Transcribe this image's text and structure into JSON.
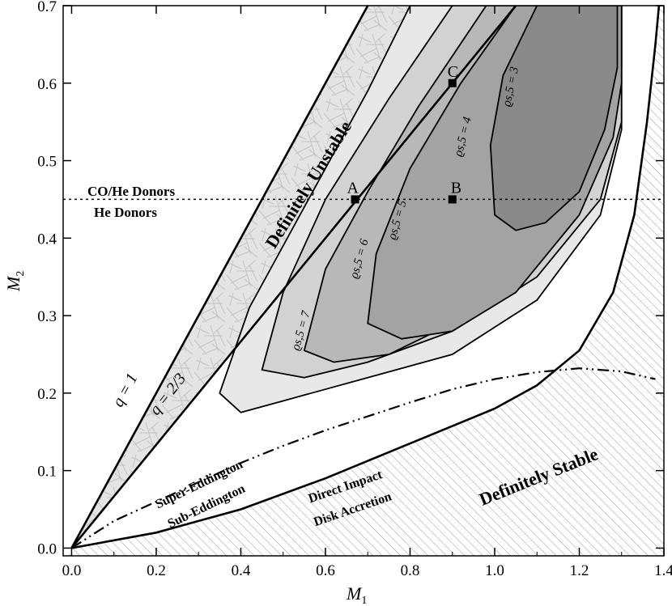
{
  "chart_data": {
    "type": "contour",
    "xlabel": {
      "main": "M",
      "sub": "1"
    },
    "ylabel": {
      "main": "M",
      "sub": "2"
    },
    "xlim": [
      -0.02,
      1.4
    ],
    "ylim": [
      -0.01,
      0.7
    ],
    "xticks": [
      "0.0",
      "0.2",
      "0.4",
      "0.6",
      "0.8",
      "1.0",
      "1.2",
      "1.4"
    ],
    "yticks": [
      "0.0",
      "0.1",
      "0.2",
      "0.3",
      "0.4",
      "0.5",
      "0.6",
      "0.7"
    ],
    "xtick_values": [
      0.0,
      0.2,
      0.4,
      0.6,
      0.8,
      1.0,
      1.2,
      1.4
    ],
    "ytick_values": [
      0.0,
      0.1,
      0.2,
      0.3,
      0.4,
      0.5,
      0.6,
      0.7
    ],
    "boundary_lines": [
      {
        "label": "q = 1",
        "slope": 1.0
      },
      {
        "label": "q = 2/3",
        "slope": 0.6667
      }
    ],
    "divider_line": {
      "y": 0.45,
      "style": "dotted",
      "label_above": "CO/He Donors",
      "label_below": "He Donors"
    },
    "contours": [
      {
        "label": "ϱs,5 = 7",
        "fill": "#e8e8e8",
        "x": [
          0.35,
          0.4,
          0.5,
          0.7,
          0.9,
          1.1,
          1.25,
          1.3,
          1.3,
          0.8,
          0.7,
          0.55,
          0.42,
          0.35
        ],
        "y": [
          0.2,
          0.175,
          0.19,
          0.22,
          0.25,
          0.32,
          0.43,
          0.54,
          0.7,
          0.7,
          0.59,
          0.44,
          0.31,
          0.2
        ]
      },
      {
        "label": "ϱs,5 = 6",
        "fill": "#d2d2d2",
        "x": [
          0.45,
          0.55,
          0.7,
          0.9,
          1.1,
          1.25,
          1.3,
          1.3,
          0.9,
          0.75,
          0.6,
          0.5,
          0.45
        ],
        "y": [
          0.23,
          0.22,
          0.24,
          0.28,
          0.35,
          0.45,
          0.55,
          0.7,
          0.7,
          0.58,
          0.45,
          0.33,
          0.23
        ]
      },
      {
        "label": "ϱs,5 = 5",
        "fill": "#b8b8b8",
        "x": [
          0.55,
          0.62,
          0.75,
          0.9,
          1.05,
          1.2,
          1.28,
          1.3,
          1.3,
          0.98,
          0.82,
          0.7,
          0.6,
          0.55
        ],
        "y": [
          0.255,
          0.24,
          0.25,
          0.29,
          0.35,
          0.44,
          0.54,
          0.62,
          0.7,
          0.7,
          0.57,
          0.46,
          0.36,
          0.255
        ]
      },
      {
        "label": "ϱs,5 = 4",
        "fill": "#a3a3a3",
        "x": [
          0.7,
          0.78,
          0.9,
          1.05,
          1.2,
          1.28,
          1.3,
          1.3,
          1.05,
          0.92,
          0.8,
          0.72,
          0.7
        ],
        "y": [
          0.29,
          0.27,
          0.28,
          0.33,
          0.43,
          0.53,
          0.6,
          0.7,
          0.7,
          0.6,
          0.49,
          0.38,
          0.29
        ]
      },
      {
        "label": "ϱs,5 = 3",
        "fill": "#8a8a8a",
        "x": [
          1.0,
          1.05,
          1.12,
          1.2,
          1.26,
          1.29,
          1.29,
          1.1,
          1.02,
          0.99,
          1.0
        ],
        "y": [
          0.43,
          0.41,
          0.42,
          0.46,
          0.54,
          0.62,
          0.7,
          0.7,
          0.61,
          0.52,
          0.43
        ]
      }
    ],
    "stability_boundary": {
      "x": [
        0.0,
        0.2,
        0.4,
        0.6,
        0.8,
        1.0,
        1.1,
        1.2,
        1.28,
        1.33,
        1.36,
        1.38,
        1.39
      ],
      "y": [
        0.0,
        0.02,
        0.05,
        0.09,
        0.135,
        0.18,
        0.21,
        0.255,
        0.33,
        0.43,
        0.55,
        0.65,
        0.71
      ]
    },
    "eddington_line": {
      "style": "dash-dot-dot",
      "x": [
        0.0,
        0.1,
        0.2,
        0.3,
        0.4,
        0.5,
        0.6,
        0.7,
        0.8,
        0.9,
        1.0,
        1.1,
        1.2,
        1.3,
        1.38
      ],
      "y": [
        0.0,
        0.035,
        0.06,
        0.085,
        0.11,
        0.132,
        0.152,
        0.17,
        0.188,
        0.205,
        0.218,
        0.227,
        0.232,
        0.228,
        0.218
      ]
    },
    "points": [
      {
        "label": "A",
        "x": 0.67,
        "y": 0.45
      },
      {
        "label": "B",
        "x": 0.9,
        "y": 0.45
      },
      {
        "label": "C",
        "x": 0.9,
        "y": 0.6
      }
    ],
    "annotations": {
      "definitely_unstable": "Definitely Unstable",
      "definitely_stable": "Definitely Stable",
      "super_eddington": "Super-Eddington",
      "sub_eddington": "Sub-Eddington",
      "direct_impact": "Direct Impact",
      "disk_accretion": "Disk Accretion"
    }
  }
}
